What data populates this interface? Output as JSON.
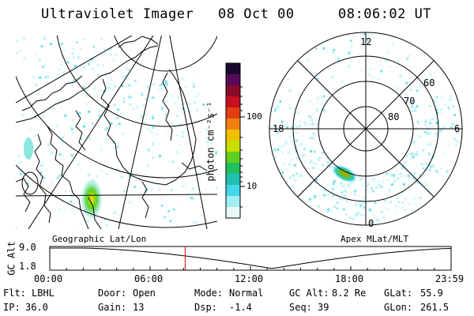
{
  "header": {
    "instrument": "Ultraviolet Imager",
    "date": "08 Oct 00",
    "time": "08:06:02 UT"
  },
  "left_panel": {
    "caption": "Geographic Lat/Lon"
  },
  "right_panel": {
    "caption": "Apex MLat/MLT",
    "mlt_labels": [
      "12",
      "18",
      "6",
      "0"
    ],
    "mlat_labels": [
      "60",
      "70",
      "80"
    ]
  },
  "colorbar": {
    "unit_label": "photon cm⁻²s⁻¹",
    "tick_labels": [
      "100",
      "10"
    ],
    "colors": [
      "#1a0a2e",
      "#5a0a5a",
      "#8a0a2a",
      "#c81020",
      "#e04010",
      "#f08010",
      "#f0c000",
      "#c8e000",
      "#60d020",
      "#20c060",
      "#20c0b0",
      "#40d8e8",
      "#a0eef4",
      "#e8f8f8"
    ]
  },
  "timeline": {
    "ylabel": "GC Alt",
    "yticks": [
      "9.0",
      "1.8"
    ],
    "xticks": [
      "00:00",
      "06:00",
      "12:00",
      "18:00",
      "23:59"
    ],
    "marker_hours": 8.1,
    "marker_color": "#e02020"
  },
  "status": {
    "row1": [
      {
        "label": "Flt:",
        "value": "LBHL"
      },
      {
        "label": "Door:",
        "value": "Open"
      },
      {
        "label": "Mode:",
        "value": "Normal"
      },
      {
        "label": "GC Alt:",
        "value": "8.2 Re"
      },
      {
        "label": "GLat:",
        "value": "55.9"
      }
    ],
    "row2": [
      {
        "label": "IP:",
        "value": "36.0"
      },
      {
        "label": "Gain:",
        "value": "13"
      },
      {
        "label": "Dsp:",
        "value": "-1.4"
      },
      {
        "label": "Seq:",
        "value": "39"
      },
      {
        "label": "GLon:",
        "value": "261.5"
      }
    ]
  }
}
